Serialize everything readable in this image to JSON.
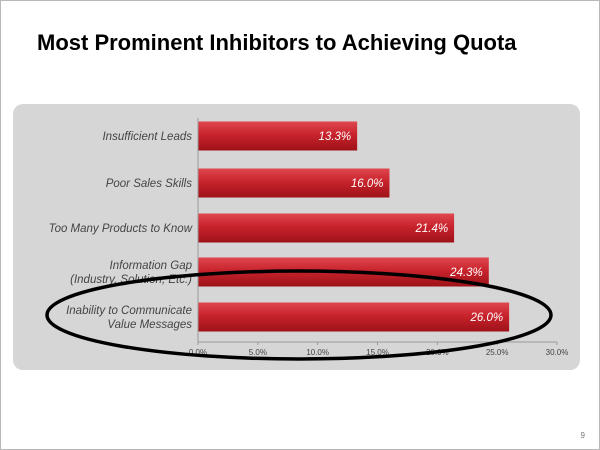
{
  "slide": {
    "title": "Most Prominent Inhibitors to Achieving Quota",
    "page_number": "9"
  },
  "colors": {
    "bar": "#c8232c",
    "panel": "#d6d6d6",
    "highlight_ellipse": "#000000"
  },
  "chart_data": {
    "type": "bar",
    "orientation": "horizontal",
    "categories": [
      [
        "Insufficient Leads"
      ],
      [
        "Poor Sales Skills"
      ],
      [
        "Too Many Products to Know"
      ],
      [
        "Information Gap",
        "(Industry, Solution, Etc.)"
      ],
      [
        "Inability to Communicate",
        "Value Messages"
      ]
    ],
    "values": [
      13.3,
      16.0,
      21.4,
      24.3,
      26.0
    ],
    "data_labels": [
      "13.3%",
      "16.0%",
      "21.4%",
      "24.3%",
      "26.0%"
    ],
    "xlim": [
      0,
      30
    ],
    "ticks": [
      0,
      5,
      10,
      15,
      20,
      25,
      30
    ],
    "tick_labels": [
      "0.0%",
      "5.0%",
      "10.0%",
      "15.0%",
      "20.0%",
      "25.0%",
      "30.0%"
    ],
    "xlabel": "",
    "ylabel": "",
    "grid": false,
    "legend": "none",
    "annotations": [
      {
        "type": "ellipse",
        "highlights": "Inability to Communicate Value Messages"
      }
    ]
  }
}
